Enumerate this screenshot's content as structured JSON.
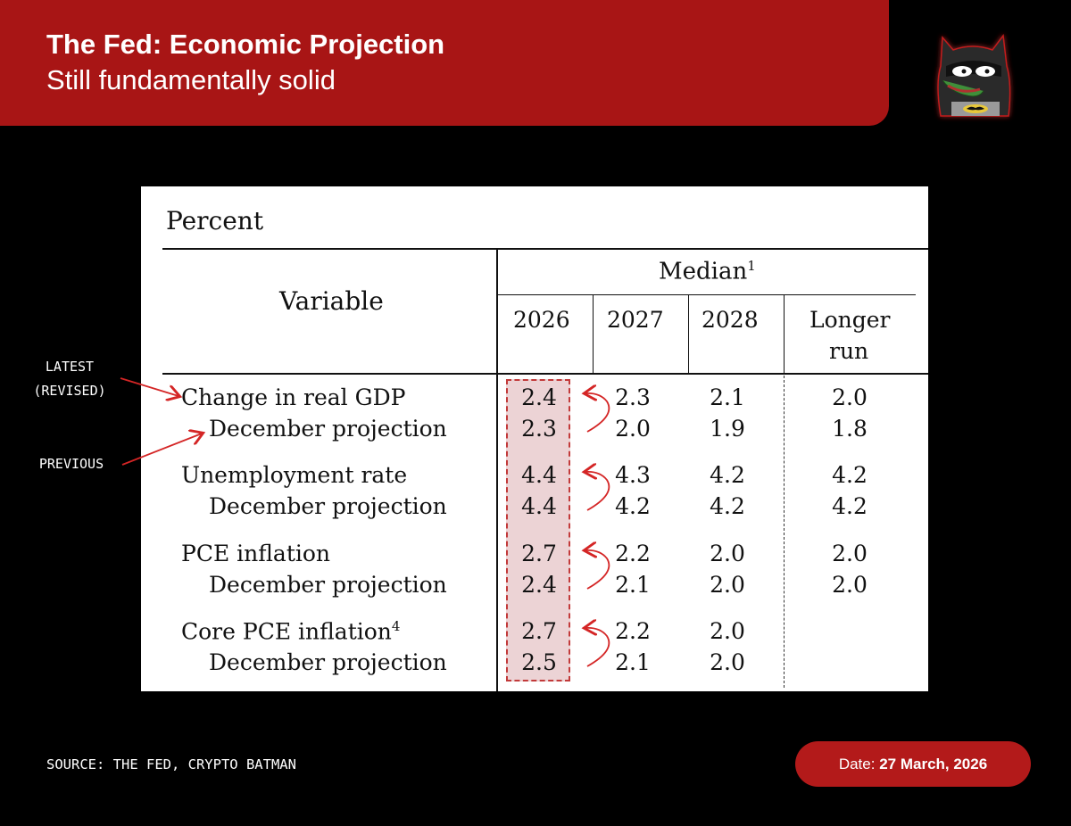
{
  "header": {
    "title": "The Fed: Economic Projection",
    "subtitle": "Still fundamentally solid"
  },
  "avatar": {
    "icon": "batman-pepe-avatar-icon"
  },
  "annotations": {
    "latest_line1": "LATEST",
    "latest_line2": "(REVISED)",
    "previous": "PREVIOUS",
    "arrow_color": "#d42525"
  },
  "table": {
    "unit": "Percent",
    "variable_header": "Variable",
    "median_header": "Median",
    "median_sup": "1",
    "columns": [
      "2026",
      "2027",
      "2028",
      "Longer run"
    ],
    "longer_run_line1": "Longer",
    "longer_run_line2": "run",
    "highlight_color": "#ecd3d5",
    "rows": [
      {
        "label": "Change in real GDP",
        "sup": "",
        "values": [
          "2.4",
          "2.3",
          "2.1",
          "2.0"
        ]
      },
      {
        "label": "December projection",
        "sup": "",
        "values": [
          "2.3",
          "2.0",
          "1.9",
          "1.8"
        ]
      },
      {
        "label": "Unemployment rate",
        "sup": "",
        "values": [
          "4.4",
          "4.3",
          "4.2",
          "4.2"
        ]
      },
      {
        "label": "December projection",
        "sup": "",
        "values": [
          "4.4",
          "4.2",
          "4.2",
          "4.2"
        ]
      },
      {
        "label": "PCE inflation",
        "sup": "",
        "values": [
          "2.7",
          "2.2",
          "2.0",
          "2.0"
        ]
      },
      {
        "label": "December projection",
        "sup": "",
        "values": [
          "2.4",
          "2.1",
          "2.0",
          "2.0"
        ]
      },
      {
        "label": "Core PCE inflation",
        "sup": "4",
        "values": [
          "2.7",
          "2.2",
          "2.0",
          ""
        ]
      },
      {
        "label": "December projection",
        "sup": "",
        "values": [
          "2.5",
          "2.1",
          "2.0",
          ""
        ]
      }
    ]
  },
  "footer": {
    "source": "SOURCE: THE FED, CRYPTO BATMAN",
    "date_label": "Date: ",
    "date_value": "27 March, 2026"
  }
}
